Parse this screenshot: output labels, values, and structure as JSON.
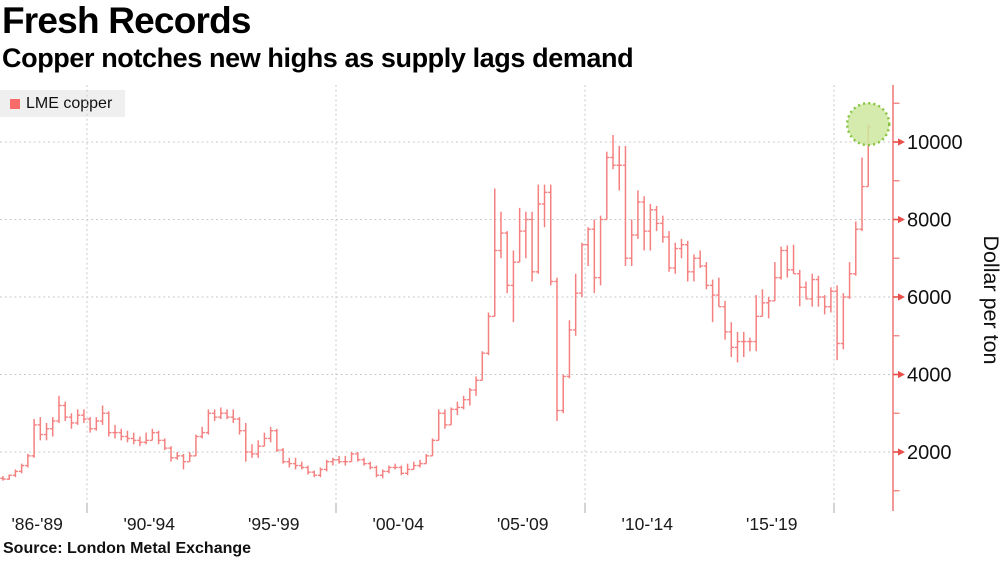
{
  "header": {
    "title": "Fresh Records",
    "subtitle": "Copper notches new highs as supply lags demand"
  },
  "legend": {
    "label": "LME copper",
    "swatch_color": "#f96b6b"
  },
  "source": {
    "text": "Source: London Metal Exchange"
  },
  "colors": {
    "bar": "#f58080",
    "axis_line": "#f07f7f",
    "tick_arrow": "#e84f4a",
    "grid": "#c9c9c9",
    "x_tick": "#b9b9b9",
    "text": "#111111",
    "legend_bg": "#efefef",
    "highlight_fill": "#cde79f",
    "highlight_stroke": "#85c23d"
  },
  "y_axis": {
    "label": "Dollar per ton",
    "ticks": [
      2000,
      4000,
      6000,
      8000,
      10000
    ],
    "minor_ticks": [
      1000,
      3000,
      5000,
      7000,
      9000,
      11000
    ]
  },
  "x_axis": {
    "labels": [
      {
        "text": "'86-'89",
        "t": 1988.0
      },
      {
        "text": "'90-'94",
        "t": 1992.5
      },
      {
        "text": "'95-'99",
        "t": 1997.5
      },
      {
        "text": "'00-'04",
        "t": 2002.5
      },
      {
        "text": "'05-'09",
        "t": 2007.5
      },
      {
        "text": "'10-'14",
        "t": 2012.5
      },
      {
        "text": "'15-'19",
        "t": 2017.5
      }
    ],
    "decade_lines": [
      1990,
      2000,
      2010,
      2020
    ]
  },
  "annotation": {
    "type": "record-highlight-circle",
    "quarter": "2021Q2",
    "value": 10460
  },
  "chart_data": {
    "type": "bar",
    "subtype": "ohlc-high-low-bars",
    "title": "Fresh Records",
    "series_name": "LME copper",
    "ylabel": "Dollar per ton",
    "unit": "USD per metric ton",
    "frequency": "quarterly",
    "ylim": [
      500,
      11470
    ],
    "grid": true,
    "legend_position": "top-left",
    "columns": [
      "quarter",
      "open",
      "high",
      "low",
      "close"
    ],
    "points": [
      [
        "1986Q3",
        1320,
        1380,
        1260,
        1300
      ],
      [
        "1986Q4",
        1300,
        1420,
        1280,
        1400
      ],
      [
        "1987Q1",
        1400,
        1550,
        1350,
        1500
      ],
      [
        "1987Q2",
        1500,
        1700,
        1450,
        1650
      ],
      [
        "1987Q3",
        1650,
        1950,
        1600,
        1900
      ],
      [
        "1987Q4",
        1900,
        2850,
        1850,
        2700
      ],
      [
        "1988Q1",
        2700,
        2900,
        2300,
        2450
      ],
      [
        "1988Q2",
        2450,
        2750,
        2300,
        2600
      ],
      [
        "1988Q3",
        2600,
        2900,
        2400,
        2800
      ],
      [
        "1988Q4",
        2800,
        3450,
        2750,
        3200
      ],
      [
        "1989Q1",
        3200,
        3300,
        2800,
        2900
      ],
      [
        "1989Q2",
        2900,
        3000,
        2600,
        2750
      ],
      [
        "1989Q3",
        2750,
        3100,
        2700,
        2950
      ],
      [
        "1989Q4",
        2950,
        3100,
        2750,
        2850
      ],
      [
        "1990Q1",
        2850,
        2900,
        2500,
        2600
      ],
      [
        "1990Q2",
        2600,
        2900,
        2550,
        2800
      ],
      [
        "1990Q3",
        2800,
        3200,
        2700,
        3000
      ],
      [
        "1990Q4",
        3000,
        3050,
        2400,
        2500
      ],
      [
        "1991Q1",
        2500,
        2700,
        2350,
        2500
      ],
      [
        "1991Q2",
        2500,
        2600,
        2300,
        2400
      ],
      [
        "1991Q3",
        2400,
        2550,
        2250,
        2350
      ],
      [
        "1991Q4",
        2350,
        2500,
        2200,
        2300
      ],
      [
        "1992Q1",
        2300,
        2400,
        2150,
        2250
      ],
      [
        "1992Q2",
        2250,
        2500,
        2200,
        2300
      ],
      [
        "1992Q3",
        2300,
        2600,
        2300,
        2500
      ],
      [
        "1992Q4",
        2500,
        2550,
        2200,
        2300
      ],
      [
        "1993Q1",
        2300,
        2350,
        2050,
        2100
      ],
      [
        "1993Q2",
        2100,
        2150,
        1750,
        1850
      ],
      [
        "1993Q3",
        1850,
        2000,
        1800,
        1900
      ],
      [
        "1993Q4",
        1900,
        1950,
        1550,
        1750
      ],
      [
        "1994Q1",
        1750,
        2000,
        1750,
        1900
      ],
      [
        "1994Q2",
        1900,
        2450,
        1900,
        2400
      ],
      [
        "1994Q3",
        2400,
        2650,
        2350,
        2500
      ],
      [
        "1994Q4",
        2500,
        3100,
        2450,
        3000
      ],
      [
        "1995Q1",
        3000,
        3100,
        2800,
        2900
      ],
      [
        "1995Q2",
        2900,
        3150,
        2850,
        3000
      ],
      [
        "1995Q3",
        3000,
        3100,
        2850,
        2900
      ],
      [
        "1995Q4",
        2900,
        3100,
        2750,
        2850
      ],
      [
        "1996Q1",
        2850,
        2900,
        2450,
        2550
      ],
      [
        "1996Q2",
        2550,
        2750,
        1750,
        2000
      ],
      [
        "1996Q3",
        2000,
        2200,
        1850,
        1950
      ],
      [
        "1996Q4",
        1950,
        2300,
        1850,
        2150
      ],
      [
        "1997Q1",
        2150,
        2500,
        2150,
        2350
      ],
      [
        "1997Q2",
        2350,
        2650,
        2250,
        2550
      ],
      [
        "1997Q3",
        2550,
        2600,
        2000,
        2050
      ],
      [
        "1997Q4",
        2050,
        2100,
        1700,
        1750
      ],
      [
        "1998Q1",
        1750,
        1850,
        1600,
        1700
      ],
      [
        "1998Q2",
        1700,
        1850,
        1550,
        1650
      ],
      [
        "1998Q3",
        1650,
        1750,
        1550,
        1600
      ],
      [
        "1998Q4",
        1600,
        1650,
        1420,
        1480
      ],
      [
        "1999Q1",
        1480,
        1520,
        1350,
        1400
      ],
      [
        "1999Q2",
        1400,
        1600,
        1350,
        1550
      ],
      [
        "1999Q3",
        1550,
        1800,
        1500,
        1750
      ],
      [
        "1999Q4",
        1750,
        1850,
        1650,
        1800
      ],
      [
        "2000Q1",
        1800,
        1900,
        1700,
        1750
      ],
      [
        "2000Q2",
        1750,
        1900,
        1650,
        1750
      ],
      [
        "2000Q3",
        1750,
        2000,
        1750,
        1950
      ],
      [
        "2000Q4",
        1950,
        2000,
        1750,
        1800
      ],
      [
        "2001Q1",
        1800,
        1850,
        1650,
        1700
      ],
      [
        "2001Q2",
        1700,
        1750,
        1550,
        1600
      ],
      [
        "2001Q3",
        1600,
        1650,
        1350,
        1400
      ],
      [
        "2001Q4",
        1400,
        1550,
        1320,
        1500
      ],
      [
        "2002Q1",
        1500,
        1650,
        1450,
        1600
      ],
      [
        "2002Q2",
        1600,
        1700,
        1550,
        1600
      ],
      [
        "2002Q3",
        1600,
        1650,
        1400,
        1450
      ],
      [
        "2002Q4",
        1450,
        1700,
        1400,
        1550
      ],
      [
        "2003Q1",
        1550,
        1750,
        1550,
        1650
      ],
      [
        "2003Q2",
        1650,
        1800,
        1600,
        1700
      ],
      [
        "2003Q3",
        1700,
        1950,
        1700,
        1900
      ],
      [
        "2003Q4",
        1900,
        2350,
        1900,
        2300
      ],
      [
        "2004Q1",
        2300,
        3100,
        2300,
        3000
      ],
      [
        "2004Q2",
        3000,
        3100,
        2600,
        2700
      ],
      [
        "2004Q3",
        2700,
        3150,
        2700,
        3100
      ],
      [
        "2004Q4",
        3100,
        3300,
        2950,
        3150
      ],
      [
        "2005Q1",
        3150,
        3450,
        3100,
        3350
      ],
      [
        "2005Q2",
        3350,
        3650,
        3200,
        3600
      ],
      [
        "2005Q3",
        3600,
        3950,
        3450,
        3850
      ],
      [
        "2005Q4",
        3850,
        4600,
        3850,
        4550
      ],
      [
        "2006Q1",
        4550,
        5600,
        4500,
        5500
      ],
      [
        "2006Q2",
        5500,
        8800,
        5500,
        7200
      ],
      [
        "2006Q3",
        7200,
        8200,
        7000,
        7650
      ],
      [
        "2006Q4",
        7650,
        7700,
        6100,
        6300
      ],
      [
        "2007Q1",
        6300,
        7200,
        5350,
        6900
      ],
      [
        "2007Q2",
        6900,
        8300,
        6900,
        7700
      ],
      [
        "2007Q3",
        7700,
        8200,
        7000,
        8000
      ],
      [
        "2007Q4",
        8000,
        8200,
        6400,
        6650
      ],
      [
        "2008Q1",
        6650,
        8900,
        6600,
        8400
      ],
      [
        "2008Q2",
        8400,
        8900,
        7800,
        8700
      ],
      [
        "2008Q3",
        8700,
        8900,
        6300,
        6400
      ],
      [
        "2008Q4",
        6400,
        6500,
        2800,
        3070
      ],
      [
        "2009Q1",
        3070,
        4000,
        3000,
        3950
      ],
      [
        "2009Q2",
        3950,
        5400,
        3900,
        5150
      ],
      [
        "2009Q3",
        5150,
        6600,
        5000,
        6100
      ],
      [
        "2009Q4",
        6100,
        7400,
        6000,
        7350
      ],
      [
        "2010Q1",
        7350,
        7800,
        6800,
        7750
      ],
      [
        "2010Q2",
        7750,
        8000,
        6100,
        6500
      ],
      [
        "2010Q3",
        6500,
        8100,
        6300,
        8000
      ],
      [
        "2010Q4",
        8000,
        9750,
        8000,
        9600
      ],
      [
        "2011Q1",
        9600,
        10180,
        9300,
        9400
      ],
      [
        "2011Q2",
        9400,
        9900,
        8750,
        9400
      ],
      [
        "2011Q3",
        9400,
        9900,
        6800,
        7000
      ],
      [
        "2011Q4",
        7000,
        8000,
        6800,
        7600
      ],
      [
        "2012Q1",
        7600,
        8750,
        7500,
        8450
      ],
      [
        "2012Q2",
        8450,
        8600,
        7200,
        7700
      ],
      [
        "2012Q3",
        7700,
        8400,
        7200,
        8250
      ],
      [
        "2012Q4",
        8250,
        8350,
        7700,
        7900
      ],
      [
        "2013Q1",
        7900,
        8100,
        7400,
        7550
      ],
      [
        "2013Q2",
        7550,
        7700,
        6650,
        6750
      ],
      [
        "2013Q3",
        6750,
        7400,
        6600,
        7250
      ],
      [
        "2013Q4",
        7250,
        7500,
        7000,
        7350
      ],
      [
        "2014Q1",
        7350,
        7450,
        6400,
        6650
      ],
      [
        "2014Q2",
        6650,
        7100,
        6400,
        7000
      ],
      [
        "2014Q3",
        7000,
        7200,
        6750,
        6800
      ],
      [
        "2014Q4",
        6800,
        6900,
        6200,
        6300
      ],
      [
        "2015Q1",
        6300,
        6450,
        5350,
        6050
      ],
      [
        "2015Q2",
        6050,
        6500,
        5750,
        5750
      ],
      [
        "2015Q3",
        5750,
        5900,
        4900,
        5100
      ],
      [
        "2015Q4",
        5100,
        5350,
        4450,
        4700
      ],
      [
        "2016Q1",
        4700,
        5100,
        4310,
        4850
      ],
      [
        "2016Q2",
        4850,
        5100,
        4450,
        4850
      ],
      [
        "2016Q3",
        4850,
        4950,
        4600,
        4850
      ],
      [
        "2016Q4",
        4850,
        6050,
        4600,
        5500
      ],
      [
        "2017Q1",
        5500,
        6200,
        5500,
        5850
      ],
      [
        "2017Q2",
        5850,
        6000,
        5450,
        5900
      ],
      [
        "2017Q3",
        5900,
        6900,
        5900,
        6500
      ],
      [
        "2017Q4",
        6500,
        7300,
        6450,
        7200
      ],
      [
        "2018Q1",
        7200,
        7330,
        6500,
        6700
      ],
      [
        "2018Q2",
        6700,
        7350,
        6600,
        6600
      ],
      [
        "2018Q3",
        6600,
        6700,
        5760,
        6250
      ],
      [
        "2018Q4",
        6250,
        6400,
        5950,
        5950
      ],
      [
        "2019Q1",
        5950,
        6600,
        5750,
        6450
      ],
      [
        "2019Q2",
        6450,
        6550,
        5750,
        6000
      ],
      [
        "2019Q3",
        6000,
        6050,
        5550,
        5750
      ],
      [
        "2019Q4",
        5750,
        6250,
        5600,
        6150
      ],
      [
        "2020Q1",
        6150,
        6300,
        4370,
        4800
      ],
      [
        "2020Q2",
        4800,
        6100,
        4650,
        6000
      ],
      [
        "2020Q3",
        6000,
        6900,
        5950,
        6600
      ],
      [
        "2020Q4",
        6600,
        7950,
        6550,
        7750
      ],
      [
        "2021Q1",
        7750,
        9600,
        7700,
        8850
      ],
      [
        "2021Q2",
        8850,
        10460,
        8850,
        10390
      ]
    ]
  }
}
